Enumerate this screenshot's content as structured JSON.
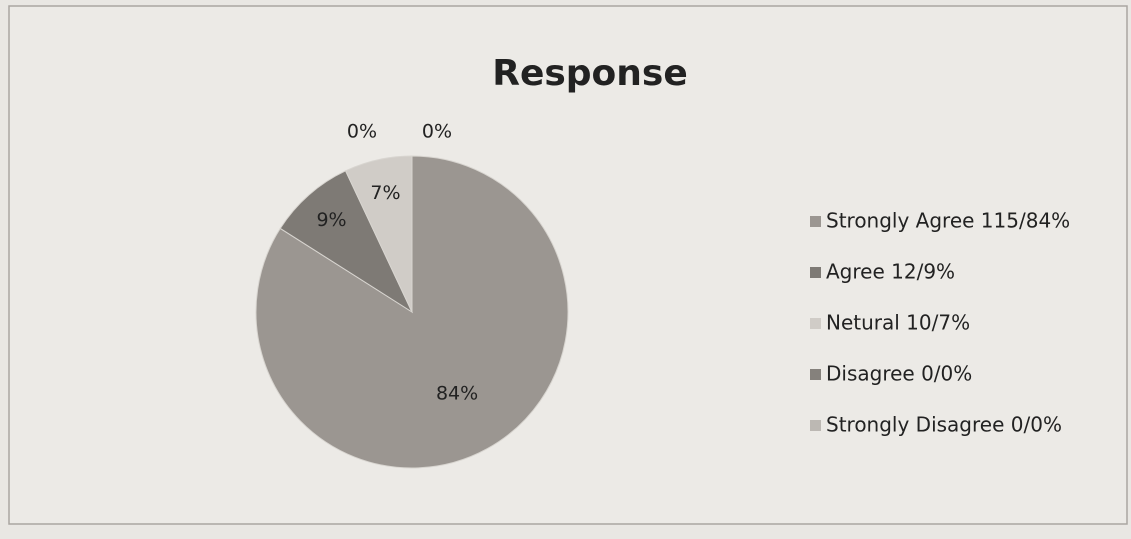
{
  "chart_data": {
    "type": "pie",
    "title": "Response",
    "categories": [
      "Strongly Agree  115/84%",
      "Agree 12/9%",
      "Netural 10/7%",
      "Disagree 0/0%",
      "Strongly Disagree  0/0%"
    ],
    "values": [
      84,
      9,
      7,
      0,
      0
    ],
    "value_labels": [
      "84%",
      "9%",
      "7%",
      "0%",
      "0%"
    ],
    "colors": [
      "#9b9691",
      "#7e7a75",
      "#d0ccc7",
      "#85817c",
      "#bcb8b3"
    ],
    "legend": "right"
  }
}
